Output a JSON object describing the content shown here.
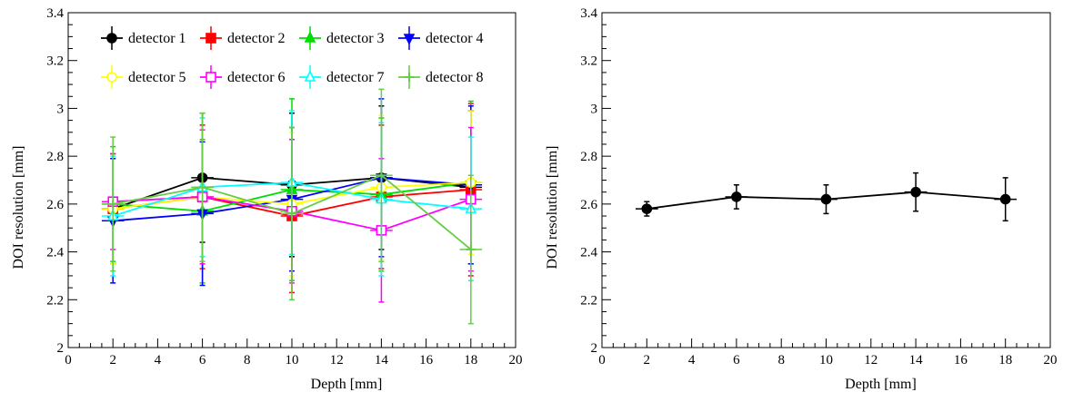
{
  "chart_data": [
    {
      "type": "scatter",
      "xlabel": "Depth [mm]",
      "ylabel": "DOI resolution [mm]",
      "xlim": [
        0,
        20
      ],
      "ylim": [
        2,
        3.4
      ],
      "xticks": [
        "0",
        "2",
        "4",
        "6",
        "8",
        "10",
        "12",
        "14",
        "16",
        "18",
        "20"
      ],
      "yticks": [
        "2",
        "2.2",
        "2.4",
        "2.6",
        "2.8",
        "3",
        "3.2",
        "3.4"
      ],
      "grid": false,
      "legend": "top-left, 2 rows",
      "x": [
        2,
        6,
        10,
        14,
        18
      ],
      "series": [
        {
          "name": "detector 1",
          "color": "#000000",
          "marker": "filled-circle",
          "values": [
            2.58,
            2.71,
            2.68,
            2.71,
            2.67
          ],
          "errors": [
            0.23,
            0.27,
            0.3,
            0.3,
            0.32
          ]
        },
        {
          "name": "detector 2",
          "color": "#ff0000",
          "marker": "filled-square",
          "values": [
            2.58,
            2.63,
            2.55,
            2.63,
            2.66
          ],
          "errors": [
            0.23,
            0.3,
            0.32,
            0.3,
            0.36
          ]
        },
        {
          "name": "detector 3",
          "color": "#00dd00",
          "marker": "filled-triangle-up",
          "values": [
            2.6,
            2.57,
            2.66,
            2.64,
            2.69
          ],
          "errors": [
            0.24,
            0.3,
            0.38,
            0.32,
            0.34
          ]
        },
        {
          "name": "detector 4",
          "color": "#0000ff",
          "marker": "filled-triangle-down",
          "values": [
            2.53,
            2.56,
            2.62,
            2.71,
            2.68
          ],
          "errors": [
            0.26,
            0.3,
            0.3,
            0.33,
            0.33
          ]
        },
        {
          "name": "detector 5",
          "color": "#ffff00",
          "marker": "open-circle",
          "values": [
            2.58,
            2.63,
            2.6,
            2.67,
            2.69
          ],
          "errors": [
            0.23,
            0.28,
            0.3,
            0.3,
            0.3
          ]
        },
        {
          "name": "detector 6",
          "color": "#ff00ff",
          "marker": "open-square",
          "values": [
            2.61,
            2.63,
            2.57,
            2.49,
            2.62
          ],
          "errors": [
            0.2,
            0.28,
            0.3,
            0.3,
            0.3
          ]
        },
        {
          "name": "detector 7",
          "color": "#00ffff",
          "marker": "open-triangle-up",
          "values": [
            2.55,
            2.67,
            2.69,
            2.62,
            2.58
          ],
          "errors": [
            0.25,
            0.29,
            0.3,
            0.32,
            0.3
          ]
        },
        {
          "name": "detector 8",
          "color": "#66cc44",
          "marker": "open-cross",
          "values": [
            2.6,
            2.67,
            2.56,
            2.72,
            2.41
          ],
          "errors": [
            0.28,
            0.31,
            0.36,
            0.36,
            0.31
          ]
        }
      ]
    },
    {
      "type": "scatter",
      "xlabel": "Depth [mm]",
      "ylabel": "DOI resolution [mm]",
      "xlim": [
        0,
        20
      ],
      "ylim": [
        2,
        3.4
      ],
      "xticks": [
        "0",
        "2",
        "4",
        "6",
        "8",
        "10",
        "12",
        "14",
        "16",
        "18",
        "20"
      ],
      "yticks": [
        "2",
        "2.2",
        "2.4",
        "2.6",
        "2.8",
        "3",
        "3.2",
        "3.4"
      ],
      "grid": false,
      "x": [
        2,
        6,
        10,
        14,
        18
      ],
      "series": [
        {
          "color": "#000000",
          "marker": "filled-circle",
          "values": [
            2.58,
            2.63,
            2.62,
            2.65,
            2.62
          ],
          "errors": [
            0.03,
            0.05,
            0.06,
            0.08,
            0.09
          ]
        }
      ]
    }
  ]
}
